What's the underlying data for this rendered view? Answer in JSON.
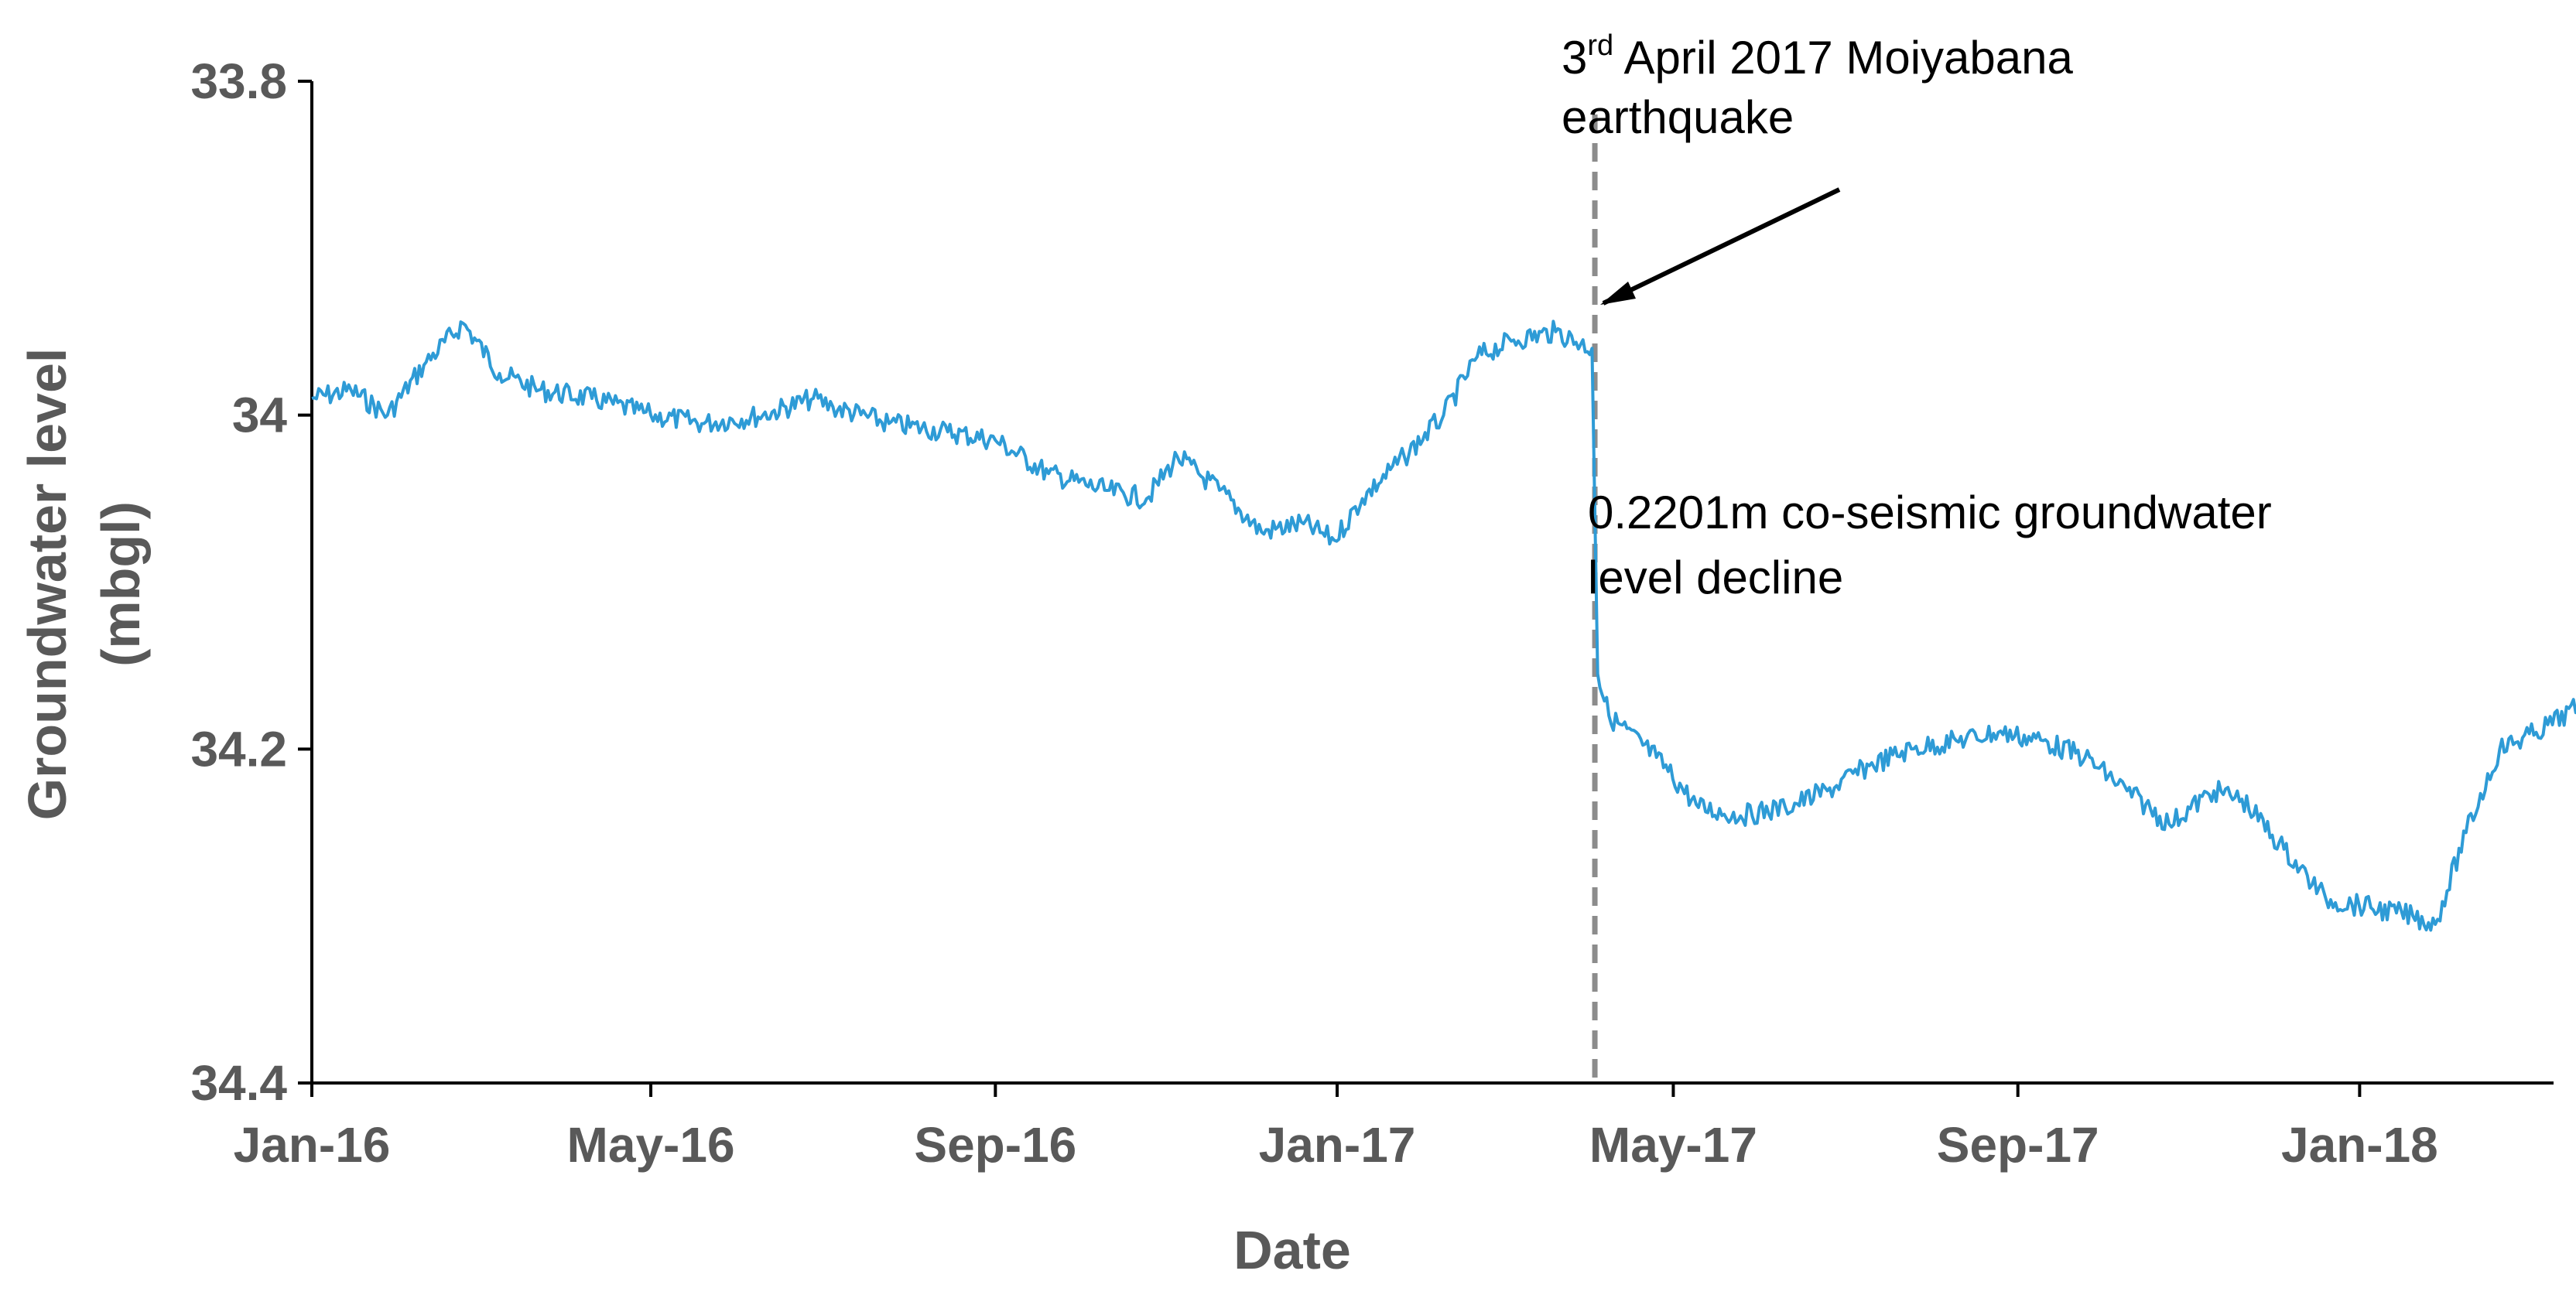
{
  "chart_data": {
    "type": "line",
    "xlabel": "Date",
    "ylabel": [
      "Groundwater level",
      "(mbgl)"
    ],
    "ylim": [
      33.8,
      34.4
    ],
    "y_inverted": true,
    "xlim": [
      "2016-01-01",
      "2018-03-20"
    ],
    "x_ticks": [
      {
        "date": "2016-01-01",
        "label": "Jan-16"
      },
      {
        "date": "2016-05-01",
        "label": "May-16"
      },
      {
        "date": "2016-09-01",
        "label": "Sep-16"
      },
      {
        "date": "2017-01-01",
        "label": "Jan-17"
      },
      {
        "date": "2017-05-01",
        "label": "May-17"
      },
      {
        "date": "2017-09-01",
        "label": "Sep-17"
      },
      {
        "date": "2018-01-01",
        "label": "Jan-18"
      }
    ],
    "y_ticks": [
      {
        "value": 33.8,
        "label": "33.8"
      },
      {
        "value": 34.0,
        "label": "34"
      },
      {
        "value": 34.2,
        "label": "34.2"
      },
      {
        "value": 34.4,
        "label": "34.4"
      }
    ],
    "series": [
      {
        "color": "#2E9BD6",
        "points": [
          [
            "2016-01-01",
            33.99
          ],
          [
            "2016-01-15",
            33.985
          ],
          [
            "2016-01-28",
            34.0
          ],
          [
            "2016-02-10",
            33.97
          ],
          [
            "2016-02-24",
            33.945
          ],
          [
            "2016-03-08",
            33.975
          ],
          [
            "2016-03-22",
            33.985
          ],
          [
            "2016-04-10",
            33.99
          ],
          [
            "2016-05-01",
            34.0
          ],
          [
            "2016-05-20",
            34.005
          ],
          [
            "2016-06-10",
            34.0
          ],
          [
            "2016-06-28",
            33.99
          ],
          [
            "2016-07-05",
            33.995
          ],
          [
            "2016-07-25",
            34.005
          ],
          [
            "2016-08-15",
            34.01
          ],
          [
            "2016-09-01",
            34.015
          ],
          [
            "2016-09-20",
            34.035
          ],
          [
            "2016-10-10",
            34.045
          ],
          [
            "2016-10-25",
            34.05
          ],
          [
            "2016-11-05",
            34.025
          ],
          [
            "2016-11-20",
            34.045
          ],
          [
            "2016-12-05",
            34.07
          ],
          [
            "2016-12-20",
            34.065
          ],
          [
            "2016-12-31",
            34.075
          ],
          [
            "2017-01-10",
            34.05
          ],
          [
            "2017-01-25",
            34.025
          ],
          [
            "2017-02-08",
            34.0
          ],
          [
            "2017-02-20",
            33.965
          ],
          [
            "2017-03-05",
            33.955
          ],
          [
            "2017-03-20",
            33.95
          ],
          [
            "2017-04-02",
            33.96
          ],
          [
            "2017-04-04",
            34.155
          ],
          [
            "2017-04-08",
            34.18
          ],
          [
            "2017-04-25",
            34.205
          ],
          [
            "2017-05-10",
            34.235
          ],
          [
            "2017-05-25",
            34.24
          ],
          [
            "2017-06-10",
            34.235
          ],
          [
            "2017-06-25",
            34.225
          ],
          [
            "2017-07-10",
            34.21
          ],
          [
            "2017-07-25",
            34.2
          ],
          [
            "2017-08-10",
            34.195
          ],
          [
            "2017-08-25",
            34.19
          ],
          [
            "2017-09-10",
            34.195
          ],
          [
            "2017-09-25",
            34.205
          ],
          [
            "2017-10-10",
            34.225
          ],
          [
            "2017-10-25",
            34.245
          ],
          [
            "2017-11-10",
            34.225
          ],
          [
            "2017-11-20",
            34.23
          ],
          [
            "2017-12-05",
            34.26
          ],
          [
            "2017-12-20",
            34.29
          ],
          [
            "2018-01-05",
            34.295
          ],
          [
            "2018-01-20",
            34.3
          ],
          [
            "2018-01-28",
            34.305
          ],
          [
            "2018-02-08",
            34.25
          ],
          [
            "2018-02-20",
            34.2
          ],
          [
            "2018-03-05",
            34.19
          ],
          [
            "2018-03-20",
            34.175
          ]
        ]
      }
    ],
    "event_line": {
      "date": "2017-04-03",
      "color": "#8C8C8C"
    },
    "annotations": [
      {
        "base": "3",
        "sup": "rd",
        "rest": " April 2017 Moiyabana",
        "line2": "earthquake"
      },
      {
        "line1": "0.2201m co-seismic groundwater",
        "line2": "level decline"
      }
    ],
    "grid": false,
    "legend": "none"
  }
}
